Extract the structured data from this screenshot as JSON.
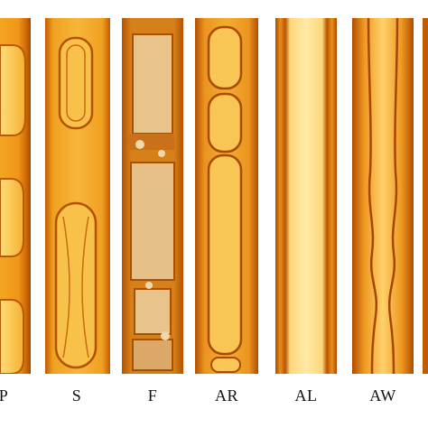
{
  "figure": {
    "labels": {
      "p": "P",
      "s": "S",
      "f": "F",
      "ar": "AR",
      "al": "AL",
      "aw": "AW"
    },
    "colors": {
      "tube_dark": "#b04a00",
      "tube_mid": "#e88a10",
      "tube_light": "#ffcc55",
      "core": "#ffe9a0",
      "label_text": "#111111"
    }
  }
}
